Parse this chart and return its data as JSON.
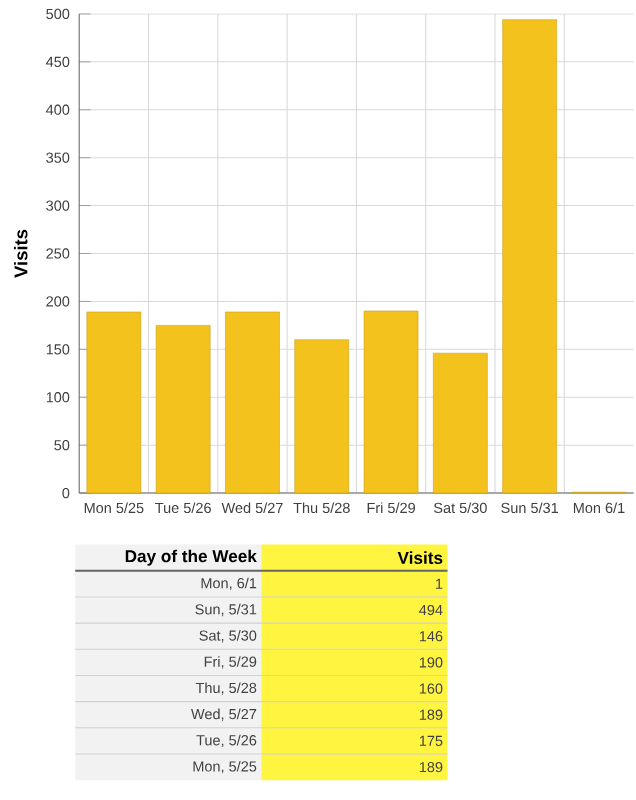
{
  "chart_data": [
    {
      "type": "bar",
      "ylabel": "Visits",
      "categories": [
        "Mon 5/25",
        "Tue 5/26",
        "Wed 5/27",
        "Thu 5/28",
        "Fri 5/29",
        "Sat 5/30",
        "Sun 5/31",
        "Mon 6/1"
      ],
      "values": [
        189,
        175,
        189,
        160,
        190,
        146,
        494,
        1
      ],
      "color": "#f4c21c",
      "ylim": [
        0,
        500
      ],
      "yticks": [
        0,
        50,
        100,
        150,
        200,
        250,
        300,
        350,
        400,
        450,
        500
      ],
      "grid": true
    },
    {
      "type": "other",
      "xlabel": "Day of the Week",
      "ylabel": "Visits",
      "categories": [
        "Mon, 6/1",
        "Sun, 5/31",
        "Sat, 5/30",
        "Fri, 5/29",
        "Thu, 5/28",
        "Wed, 5/27",
        "Tue, 5/26",
        "Mon, 5/25"
      ],
      "values": [
        1,
        494,
        146,
        190,
        160,
        189,
        175,
        189
      ],
      "data_labels": true
    }
  ]
}
